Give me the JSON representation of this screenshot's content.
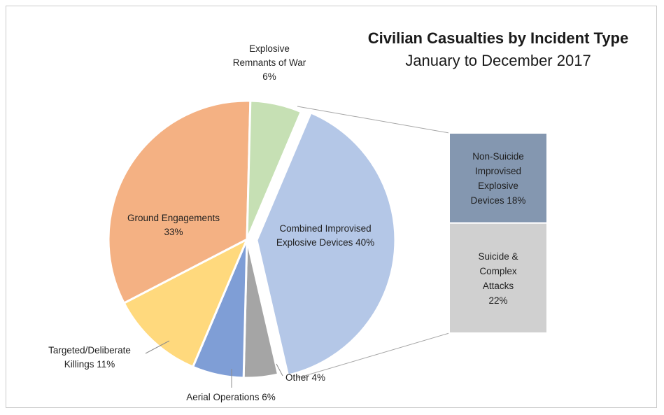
{
  "chart_data": {
    "type": "pie",
    "title": "Civilian Casualties by Incident Type",
    "subtitle": "January to December 2017",
    "slices": [
      {
        "label_lines": [
          "Combined Improvised",
          "Explosive Devices 40%"
        ],
        "value": 40,
        "color": "#b4c7e7",
        "exploded": true
      },
      {
        "label_lines": [
          "Other 4%"
        ],
        "value": 4,
        "color": "#a5a5a5"
      },
      {
        "label_lines": [
          "Aerial Operations 6%"
        ],
        "value": 6,
        "color": "#7f9ed6"
      },
      {
        "label_lines": [
          "Targeted/Deliberate",
          "Killings 11%"
        ],
        "value": 11,
        "color": "#ffd97d"
      },
      {
        "label_lines": [
          "Ground Engagements",
          "33%"
        ],
        "value": 33,
        "color": "#f4b183"
      },
      {
        "label_lines": [
          "Explosive",
          "Remnants of War",
          "6%"
        ],
        "value": 6,
        "color": "#c6e0b4"
      }
    ],
    "breakdown": {
      "parent": "Combined Improvised Explosive Devices 40%",
      "segments": [
        {
          "label_lines": [
            "Non-Suicide",
            "Improvised",
            "Explosive",
            "Devices 18%"
          ],
          "value": 18,
          "color": "#8497b0"
        },
        {
          "label_lines": [
            "Suicide &",
            "Complex",
            "Attacks",
            "22%"
          ],
          "value": 22,
          "color": "#d0d0d0"
        }
      ]
    }
  }
}
